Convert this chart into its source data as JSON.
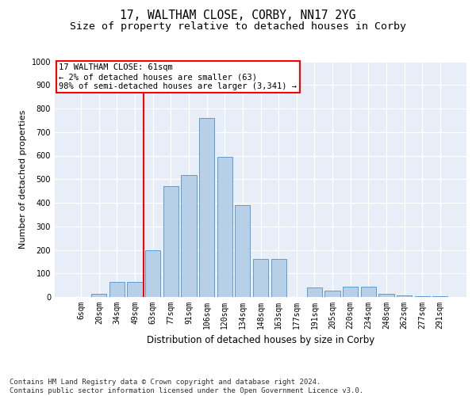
{
  "title1": "17, WALTHAM CLOSE, CORBY, NN17 2YG",
  "title2": "Size of property relative to detached houses in Corby",
  "xlabel": "Distribution of detached houses by size in Corby",
  "ylabel": "Number of detached properties",
  "categories": [
    "6sqm",
    "20sqm",
    "34sqm",
    "49sqm",
    "63sqm",
    "77sqm",
    "91sqm",
    "106sqm",
    "120sqm",
    "134sqm",
    "148sqm",
    "163sqm",
    "177sqm",
    "191sqm",
    "205sqm",
    "220sqm",
    "234sqm",
    "248sqm",
    "262sqm",
    "277sqm",
    "291sqm"
  ],
  "values": [
    0,
    13,
    65,
    65,
    200,
    470,
    518,
    760,
    595,
    390,
    160,
    160,
    0,
    42,
    28,
    44,
    44,
    13,
    8,
    5,
    5
  ],
  "bar_color": "#b8cfe8",
  "bar_edge_color": "#5b9bd5",
  "vline_x_index": 4,
  "vline_color": "red",
  "annotation_text": "17 WALTHAM CLOSE: 61sqm\n← 2% of detached houses are smaller (63)\n98% of semi-detached houses are larger (3,341) →",
  "annotation_box_color": "white",
  "annotation_box_edge": "red",
  "ylim": [
    0,
    1000
  ],
  "yticks": [
    0,
    100,
    200,
    300,
    400,
    500,
    600,
    700,
    800,
    900,
    1000
  ],
  "footnote": "Contains HM Land Registry data © Crown copyright and database right 2024.\nContains public sector information licensed under the Open Government Licence v3.0.",
  "bg_color": "#e8eef8",
  "title1_fontsize": 10.5,
  "title2_fontsize": 9.5,
  "xlabel_fontsize": 8.5,
  "ylabel_fontsize": 8,
  "tick_fontsize": 7,
  "footnote_fontsize": 6.5,
  "annotation_fontsize": 7.5
}
